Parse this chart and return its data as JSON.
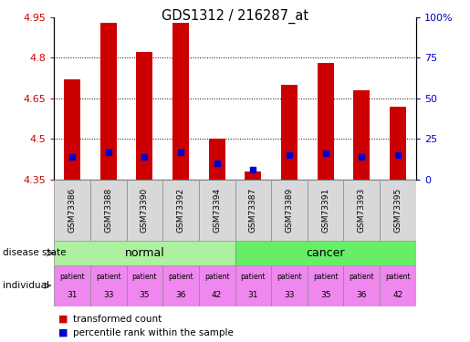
{
  "title": "GDS1312 / 216287_at",
  "samples": [
    "GSM73386",
    "GSM73388",
    "GSM73390",
    "GSM73392",
    "GSM73394",
    "GSM73387",
    "GSM73389",
    "GSM73391",
    "GSM73393",
    "GSM73395"
  ],
  "transformed_count": [
    4.72,
    4.93,
    4.82,
    4.93,
    4.5,
    4.38,
    4.7,
    4.78,
    4.68,
    4.62
  ],
  "percentile_rank": [
    14,
    17,
    14,
    17,
    10,
    6,
    15,
    16,
    14,
    15
  ],
  "bar_bottom": 4.35,
  "ylim_left": [
    4.35,
    4.95
  ],
  "ylim_right": [
    0,
    100
  ],
  "yticks_left": [
    4.35,
    4.5,
    4.65,
    4.8,
    4.95
  ],
  "yticks_right": [
    0,
    25,
    50,
    75,
    100
  ],
  "ytick_labels_left": [
    "4.35",
    "4.5",
    "4.65",
    "4.8",
    "4.95"
  ],
  "ytick_labels_right": [
    "0",
    "25",
    "50",
    "75",
    "100%"
  ],
  "bar_color": "#cc0000",
  "percentile_color": "#0000cc",
  "disease_normal_color": "#adf0a0",
  "disease_cancer_color": "#66ee66",
  "individual_color": "#ee88ee",
  "individual_labels_top": [
    "patient",
    "patient",
    "patient",
    "patient",
    "patient",
    "patient",
    "patient",
    "patient",
    "patient",
    "patient"
  ],
  "individual_numbers": [
    "31",
    "33",
    "35",
    "36",
    "42",
    "31",
    "33",
    "35",
    "36",
    "42"
  ],
  "grid_color": "black",
  "bg_color": "white",
  "axis_label_color_left": "#cc0000",
  "axis_label_color_right": "#0000cc",
  "sample_bg_color": "#d8d8d8",
  "normal_group": [
    0,
    1,
    2,
    3,
    4
  ],
  "cancer_group": [
    5,
    6,
    7,
    8,
    9
  ]
}
